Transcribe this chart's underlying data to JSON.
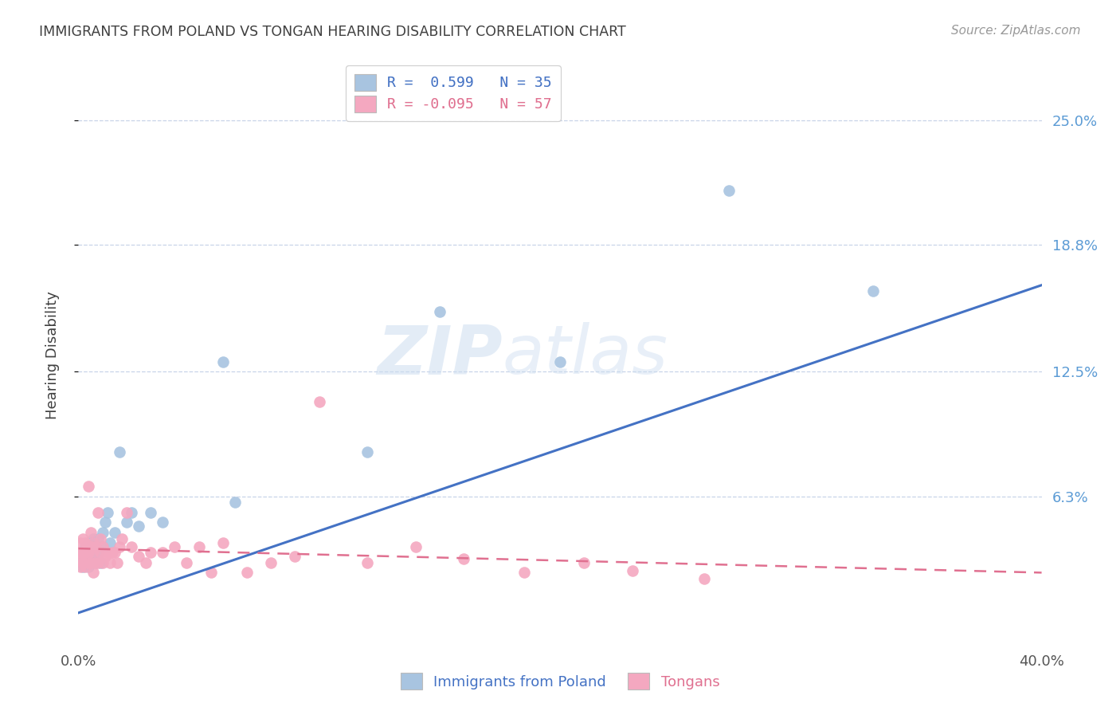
{
  "title": "IMMIGRANTS FROM POLAND VS TONGAN HEARING DISABILITY CORRELATION CHART",
  "source": "Source: ZipAtlas.com",
  "ylabel": "Hearing Disability",
  "ytick_labels": [
    "25.0%",
    "18.8%",
    "12.5%",
    "6.3%"
  ],
  "ytick_values": [
    0.25,
    0.188,
    0.125,
    0.063
  ],
  "xlim": [
    0.0,
    0.4
  ],
  "ylim": [
    -0.012,
    0.278
  ],
  "poland_color": "#a8c4e0",
  "tongan_color": "#f4a8c0",
  "poland_line_color": "#4472c4",
  "tongan_line_color": "#e07090",
  "watermark_zip": "ZIP",
  "watermark_atlas": "atlas",
  "poland_scatter_x": [
    0.001,
    0.002,
    0.002,
    0.003,
    0.003,
    0.004,
    0.004,
    0.005,
    0.005,
    0.006,
    0.006,
    0.007,
    0.007,
    0.008,
    0.008,
    0.009,
    0.01,
    0.01,
    0.011,
    0.012,
    0.013,
    0.015,
    0.017,
    0.02,
    0.022,
    0.025,
    0.03,
    0.035,
    0.06,
    0.065,
    0.12,
    0.15,
    0.2,
    0.27,
    0.33
  ],
  "poland_scatter_y": [
    0.03,
    0.028,
    0.035,
    0.03,
    0.038,
    0.028,
    0.04,
    0.033,
    0.04,
    0.035,
    0.042,
    0.03,
    0.038,
    0.035,
    0.042,
    0.03,
    0.038,
    0.045,
    0.05,
    0.055,
    0.04,
    0.045,
    0.085,
    0.05,
    0.055,
    0.048,
    0.055,
    0.05,
    0.13,
    0.06,
    0.085,
    0.155,
    0.13,
    0.215,
    0.165
  ],
  "tongan_scatter_x": [
    0.0,
    0.001,
    0.001,
    0.001,
    0.002,
    0.002,
    0.002,
    0.003,
    0.003,
    0.003,
    0.004,
    0.004,
    0.004,
    0.005,
    0.005,
    0.005,
    0.006,
    0.006,
    0.006,
    0.007,
    0.007,
    0.008,
    0.008,
    0.009,
    0.009,
    0.01,
    0.01,
    0.011,
    0.012,
    0.013,
    0.014,
    0.015,
    0.016,
    0.017,
    0.018,
    0.02,
    0.022,
    0.025,
    0.028,
    0.03,
    0.035,
    0.04,
    0.045,
    0.05,
    0.055,
    0.06,
    0.07,
    0.08,
    0.09,
    0.1,
    0.12,
    0.14,
    0.16,
    0.185,
    0.21,
    0.23,
    0.26
  ],
  "tongan_scatter_y": [
    0.035,
    0.028,
    0.033,
    0.04,
    0.03,
    0.035,
    0.042,
    0.028,
    0.035,
    0.04,
    0.03,
    0.035,
    0.068,
    0.03,
    0.038,
    0.045,
    0.025,
    0.035,
    0.04,
    0.03,
    0.038,
    0.03,
    0.055,
    0.035,
    0.042,
    0.03,
    0.038,
    0.033,
    0.035,
    0.03,
    0.035,
    0.035,
    0.03,
    0.038,
    0.042,
    0.055,
    0.038,
    0.033,
    0.03,
    0.035,
    0.035,
    0.038,
    0.03,
    0.038,
    0.025,
    0.04,
    0.025,
    0.03,
    0.033,
    0.11,
    0.03,
    0.038,
    0.032,
    0.025,
    0.03,
    0.026,
    0.022
  ],
  "poland_line_x": [
    0.0,
    0.4
  ],
  "poland_line_y": [
    0.005,
    0.168
  ],
  "tongan_line_x": [
    0.0,
    0.4
  ],
  "tongan_line_y": [
    0.037,
    0.025
  ],
  "background_color": "#ffffff",
  "grid_color": "#c8d4e8",
  "title_color": "#404040",
  "right_tick_color": "#5b9bd5"
}
